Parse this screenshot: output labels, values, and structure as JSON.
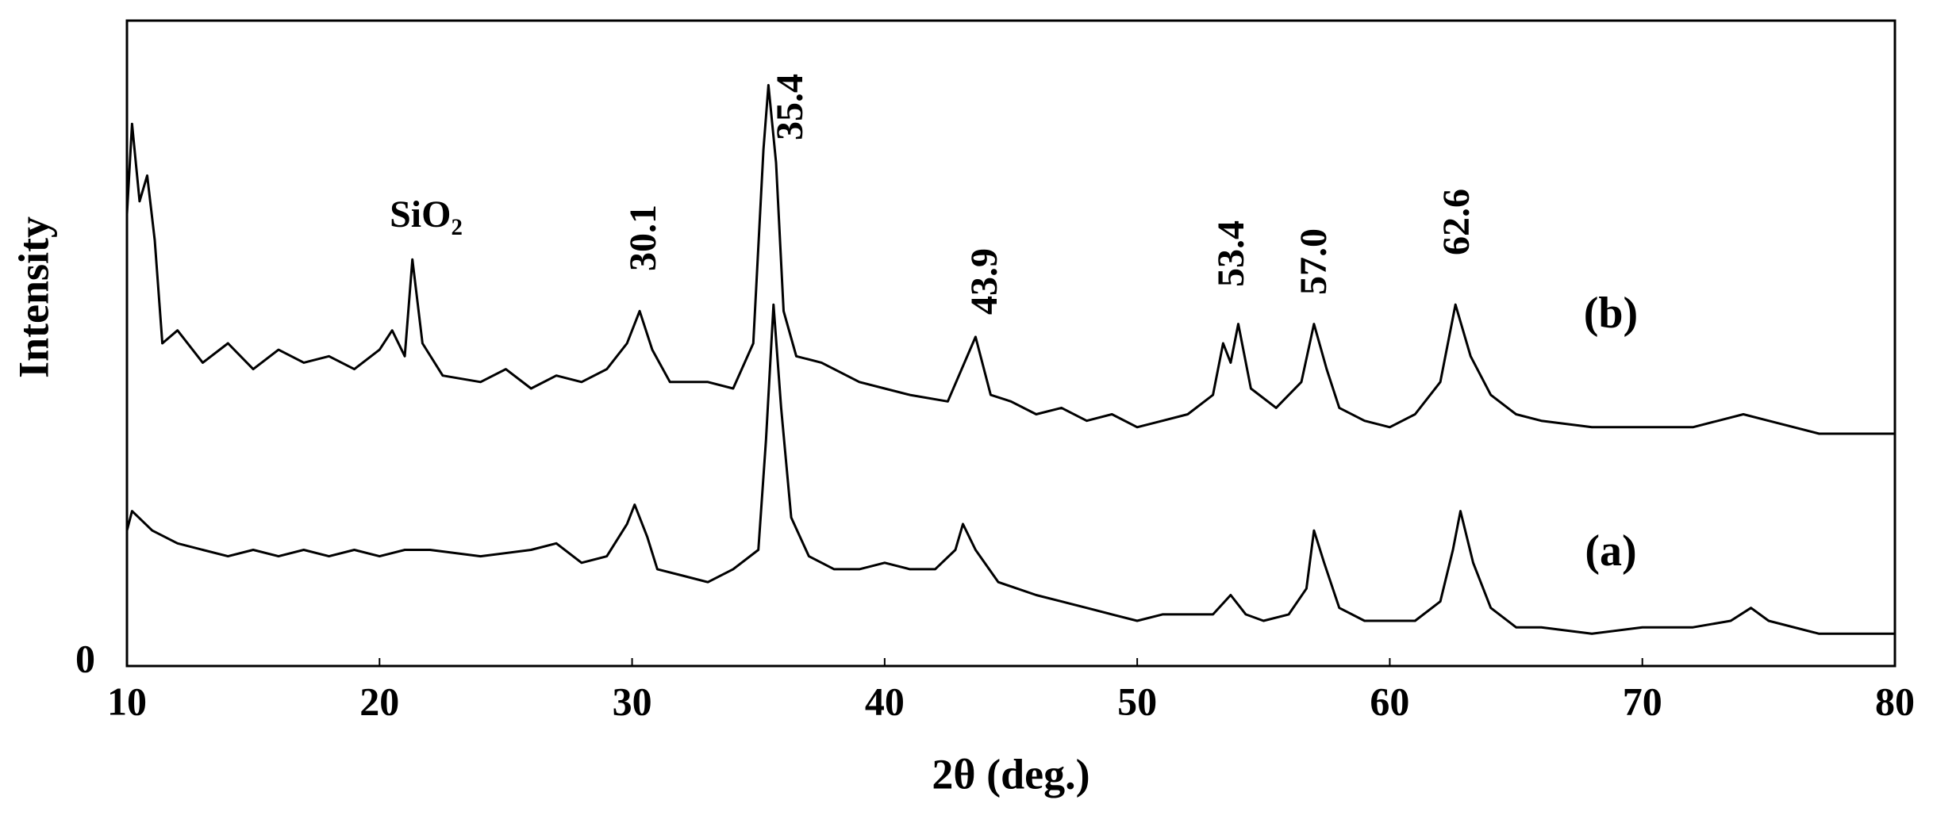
{
  "chart_data": {
    "type": "line",
    "x_label": "2θ (deg.)",
    "y_label": "Intensity",
    "xlim": [
      10,
      80
    ],
    "xticks": [
      10,
      20,
      30,
      40,
      50,
      60,
      70,
      80
    ],
    "ylim": [
      0,
      100
    ],
    "yticks": [
      0
    ],
    "series": [
      {
        "name": "(b)",
        "color": "#000000",
        "x": [
          10,
          10.2,
          10.5,
          10.8,
          11.1,
          11.4,
          12,
          13,
          14,
          15,
          16,
          17,
          18,
          19,
          20,
          20.5,
          21,
          21.3,
          21.7,
          22.5,
          24,
          25,
          26,
          27,
          28,
          29,
          29.8,
          30.3,
          30.8,
          31.5,
          33,
          34,
          34.8,
          35.2,
          35.4,
          35.7,
          36,
          36.5,
          37.5,
          39,
          40,
          41,
          42.5,
          43.6,
          44.2,
          45,
          46,
          47,
          48,
          49,
          50,
          51,
          52,
          53,
          53.4,
          53.7,
          54,
          54.5,
          55.5,
          56.5,
          57.0,
          57.5,
          58,
          59,
          60,
          61,
          62,
          62.6,
          63.2,
          64,
          65,
          66,
          68,
          70,
          72,
          74,
          75,
          77,
          80
        ],
        "values": [
          70,
          84,
          72,
          76,
          66,
          50,
          52,
          47,
          50,
          46,
          49,
          47,
          48,
          46,
          49,
          52,
          48,
          63,
          50,
          45,
          44,
          46,
          43,
          45,
          44,
          46,
          50,
          55,
          49,
          44,
          44,
          43,
          50,
          80,
          90,
          78,
          55,
          48,
          47,
          44,
          43,
          42,
          41,
          51,
          42,
          41,
          39,
          40,
          38,
          39,
          37,
          38,
          39,
          42,
          50,
          47,
          53,
          43,
          40,
          44,
          53,
          46,
          40,
          38,
          37,
          39,
          44,
          56,
          48,
          42,
          39,
          38,
          37,
          37,
          37,
          39,
          38,
          36,
          36
        ]
      },
      {
        "name": "(a)",
        "color": "#000000",
        "x": [
          10,
          10.2,
          11,
          12,
          13,
          14,
          15,
          16,
          17,
          18,
          19,
          20,
          21,
          22,
          24,
          26,
          27,
          28,
          29,
          29.8,
          30.1,
          30.6,
          31,
          32,
          33,
          34,
          35,
          35.3,
          35.6,
          35.9,
          36.3,
          37,
          38,
          39,
          40,
          41,
          42,
          42.8,
          43.1,
          43.6,
          44.5,
          46,
          47,
          48,
          49,
          50,
          51,
          52,
          53,
          53.7,
          54.3,
          55,
          56,
          56.7,
          57.0,
          57.4,
          58,
          59,
          60,
          61,
          62,
          62.5,
          62.8,
          63.3,
          64,
          65,
          66,
          68,
          70,
          72,
          73.5,
          74.3,
          75,
          77,
          80
        ],
        "values": [
          21,
          24,
          21,
          19,
          18,
          17,
          18,
          17,
          18,
          17,
          18,
          17,
          18,
          18,
          17,
          18,
          19,
          16,
          17,
          22,
          25,
          20,
          15,
          14,
          13,
          15,
          18,
          35,
          56,
          40,
          23,
          17,
          15,
          15,
          16,
          15,
          15,
          18,
          22,
          18,
          13,
          11,
          10,
          9,
          8,
          7,
          8,
          8,
          8,
          11,
          8,
          7,
          8,
          12,
          21,
          16,
          9,
          7,
          7,
          7,
          10,
          18,
          24,
          16,
          9,
          6,
          6,
          5,
          6,
          6,
          7,
          9,
          7,
          5,
          5
        ]
      }
    ],
    "annotations": [
      "SiO₂",
      "30.1",
      "35.4",
      "43.9",
      "53.4",
      "57.0",
      "62.6"
    ]
  }
}
